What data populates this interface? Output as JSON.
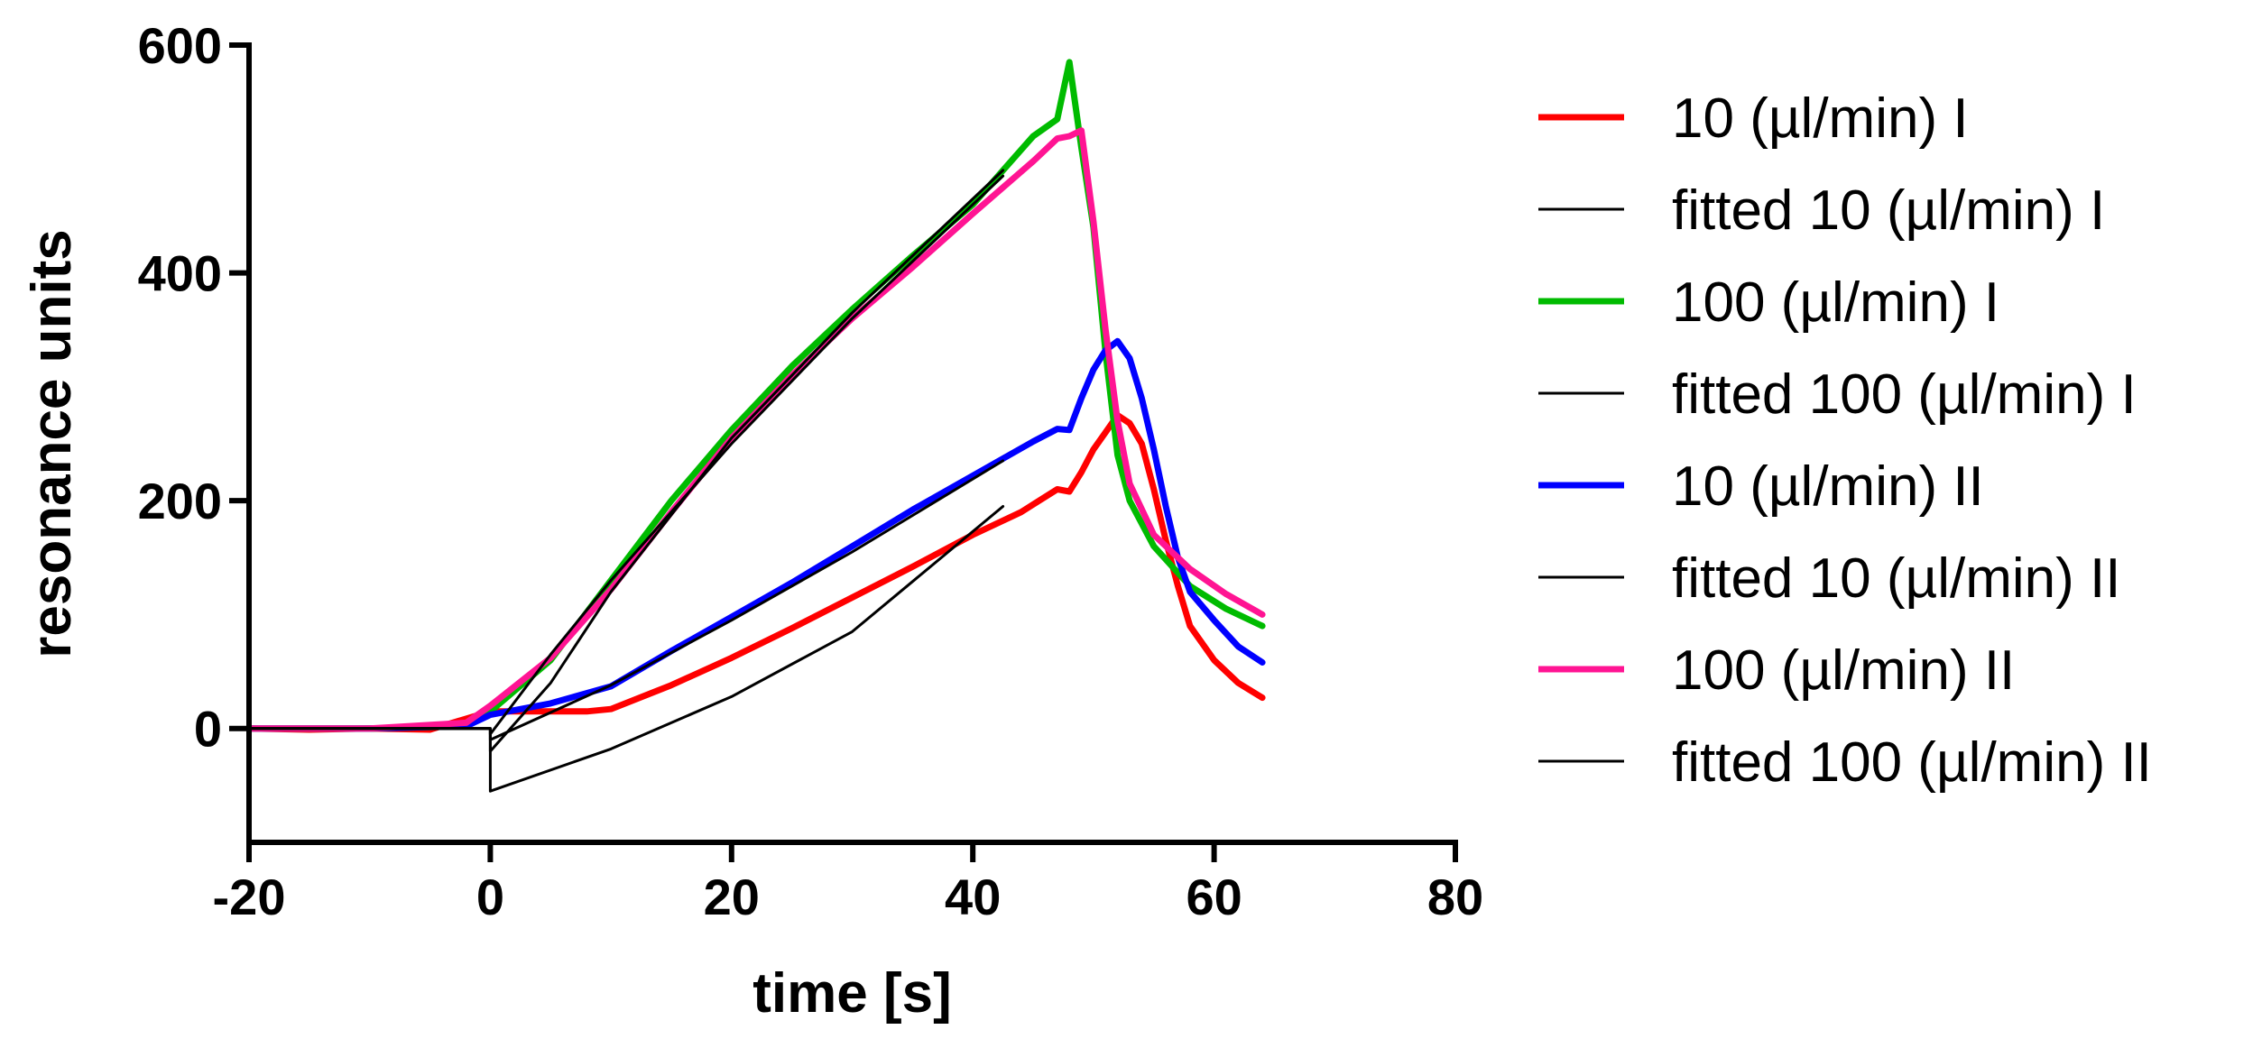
{
  "chart_data": {
    "type": "line",
    "title": "",
    "xlabel": "time [s]",
    "ylabel": "resonance units",
    "xlim": [
      -20,
      80
    ],
    "ylim": [
      -100,
      600
    ],
    "xticks": [
      -20,
      0,
      20,
      40,
      60,
      80
    ],
    "yticks": [
      0,
      200,
      400,
      600
    ],
    "xtick_labels": [
      "-20",
      "0",
      "20",
      "40",
      "60",
      "80"
    ],
    "ytick_labels": [
      "0",
      "200",
      "400",
      "600"
    ],
    "grid": false,
    "legend_position": "right",
    "series": [
      {
        "name": "10 (µl/min) I",
        "color": "#ff0000",
        "points": [
          [
            -20,
            0
          ],
          [
            -15,
            -1
          ],
          [
            -10,
            0
          ],
          [
            -5,
            -1
          ],
          [
            0,
            15
          ],
          [
            5,
            15
          ],
          [
            8,
            15
          ],
          [
            10,
            17
          ],
          [
            15,
            38
          ],
          [
            20,
            62
          ],
          [
            25,
            88
          ],
          [
            30,
            115
          ],
          [
            35,
            142
          ],
          [
            40,
            170
          ],
          [
            44,
            190
          ],
          [
            47,
            210
          ],
          [
            48,
            208
          ],
          [
            49,
            225
          ],
          [
            50,
            245
          ],
          [
            51,
            260
          ],
          [
            52,
            275
          ],
          [
            53,
            268
          ],
          [
            54,
            250
          ],
          [
            55,
            210
          ],
          [
            56,
            165
          ],
          [
            57,
            125
          ],
          [
            58,
            90
          ],
          [
            60,
            60
          ],
          [
            62,
            40
          ],
          [
            64,
            27
          ]
        ]
      },
      {
        "name": "fitted 10 (µl/min) I",
        "color": "#000000",
        "points": [
          [
            -20,
            0
          ],
          [
            0,
            0
          ],
          [
            0,
            -55
          ],
          [
            10,
            -18
          ],
          [
            20,
            28
          ],
          [
            30,
            85
          ],
          [
            42.5,
            195
          ]
        ]
      },
      {
        "name": "100 (µl/min) I",
        "color": "#00bb00",
        "points": [
          [
            -20,
            0
          ],
          [
            -10,
            0
          ],
          [
            -2,
            2
          ],
          [
            0,
            15
          ],
          [
            5,
            60
          ],
          [
            10,
            130
          ],
          [
            15,
            200
          ],
          [
            20,
            262
          ],
          [
            25,
            318
          ],
          [
            30,
            368
          ],
          [
            35,
            415
          ],
          [
            40,
            460
          ],
          [
            45,
            520
          ],
          [
            47,
            535
          ],
          [
            48,
            585
          ],
          [
            49,
            510
          ],
          [
            50,
            440
          ],
          [
            51,
            330
          ],
          [
            52,
            240
          ],
          [
            53,
            200
          ],
          [
            55,
            160
          ],
          [
            58,
            125
          ],
          [
            61,
            105
          ],
          [
            64,
            90
          ]
        ]
      },
      {
        "name": "fitted 100 (µl/min) I",
        "color": "#000000",
        "points": [
          [
            -20,
            0
          ],
          [
            0,
            0
          ],
          [
            0,
            -20
          ],
          [
            5,
            40
          ],
          [
            10,
            120
          ],
          [
            20,
            255
          ],
          [
            30,
            365
          ],
          [
            42.5,
            490
          ]
        ]
      },
      {
        "name": "10 (µl/min) II",
        "color": "#0000ff",
        "points": [
          [
            -20,
            0
          ],
          [
            -10,
            0
          ],
          [
            -2,
            2
          ],
          [
            0,
            12
          ],
          [
            5,
            22
          ],
          [
            10,
            37
          ],
          [
            15,
            68
          ],
          [
            20,
            98
          ],
          [
            25,
            128
          ],
          [
            30,
            160
          ],
          [
            35,
            192
          ],
          [
            40,
            222
          ],
          [
            45,
            252
          ],
          [
            47,
            263
          ],
          [
            48,
            262
          ],
          [
            49,
            290
          ],
          [
            50,
            315
          ],
          [
            51,
            332
          ],
          [
            52,
            340
          ],
          [
            53,
            325
          ],
          [
            54,
            290
          ],
          [
            55,
            245
          ],
          [
            56,
            195
          ],
          [
            57,
            150
          ],
          [
            58,
            120
          ],
          [
            60,
            95
          ],
          [
            62,
            72
          ],
          [
            64,
            58
          ]
        ]
      },
      {
        "name": "fitted 10 (µl/min) II",
        "color": "#000000",
        "points": [
          [
            -20,
            0
          ],
          [
            0,
            0
          ],
          [
            0,
            -10
          ],
          [
            10,
            38
          ],
          [
            20,
            95
          ],
          [
            30,
            155
          ],
          [
            42.5,
            235
          ]
        ]
      },
      {
        "name": "100 (µl/min) II",
        "color": "#ff1493",
        "points": [
          [
            -20,
            0
          ],
          [
            -10,
            0
          ],
          [
            -2,
            5
          ],
          [
            0,
            20
          ],
          [
            5,
            62
          ],
          [
            10,
            122
          ],
          [
            15,
            190
          ],
          [
            20,
            255
          ],
          [
            25,
            310
          ],
          [
            30,
            360
          ],
          [
            35,
            405
          ],
          [
            40,
            452
          ],
          [
            45,
            498
          ],
          [
            47,
            518
          ],
          [
            48,
            520
          ],
          [
            49,
            525
          ],
          [
            50,
            445
          ],
          [
            51,
            350
          ],
          [
            52,
            270
          ],
          [
            53,
            215
          ],
          [
            55,
            170
          ],
          [
            58,
            140
          ],
          [
            61,
            118
          ],
          [
            64,
            100
          ]
        ]
      },
      {
        "name": "fitted 100 (µl/min) II",
        "color": "#000000",
        "points": [
          [
            -20,
            0
          ],
          [
            0,
            0
          ],
          [
            0,
            -5
          ],
          [
            5,
            65
          ],
          [
            10,
            130
          ],
          [
            20,
            250
          ],
          [
            30,
            360
          ],
          [
            42.5,
            485
          ]
        ]
      }
    ]
  }
}
